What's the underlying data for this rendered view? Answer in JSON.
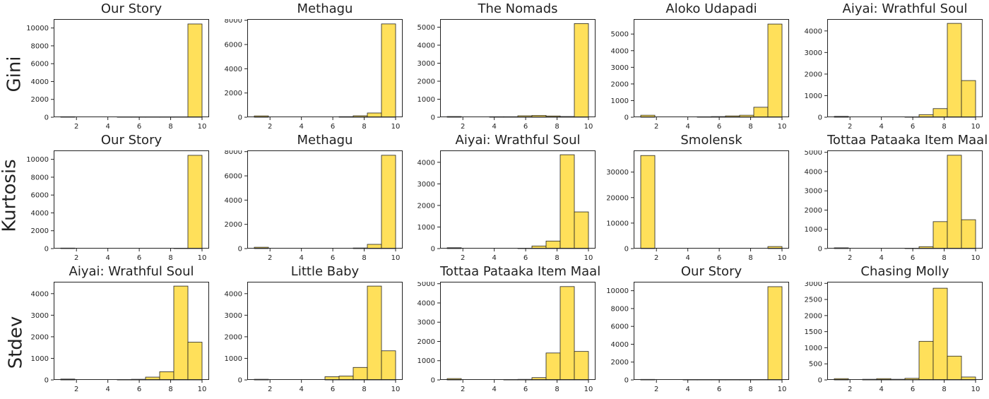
{
  "row_labels": [
    "Gini",
    "Kurtosis",
    "Stdev"
  ],
  "bar_fill": "#ffe05a",
  "bar_stroke": "#222222",
  "chart_data": [
    {
      "type": "bar",
      "row": "Gini",
      "title": "Our Story",
      "bin_edges": [
        1,
        1.9,
        2.8,
        3.7,
        4.6,
        5.5,
        6.4,
        7.3,
        8.2,
        9.1,
        10
      ],
      "values": [
        60,
        0,
        0,
        0,
        30,
        30,
        30,
        30,
        30,
        10450
      ],
      "xticks": [
        2,
        4,
        6,
        8,
        10
      ],
      "yticks": [
        0,
        2000,
        4000,
        6000,
        8000,
        10000
      ],
      "ylim": [
        0,
        11000
      ]
    },
    {
      "type": "bar",
      "row": "Gini",
      "title": "Methagu",
      "bin_edges": [
        1,
        1.9,
        2.8,
        3.7,
        4.6,
        5.5,
        6.4,
        7.3,
        8.2,
        9.1,
        10
      ],
      "values": [
        110,
        0,
        0,
        0,
        0,
        0,
        50,
        120,
        350,
        7700
      ],
      "xticks": [
        2,
        4,
        6,
        8,
        10
      ],
      "yticks": [
        0,
        2000,
        4000,
        6000,
        8000
      ],
      "ylim": [
        0,
        8100
      ]
    },
    {
      "type": "bar",
      "row": "Gini",
      "title": "The Nomads",
      "bin_edges": [
        1,
        1.9,
        2.8,
        3.7,
        4.6,
        5.5,
        6.4,
        7.3,
        8.2,
        9.1,
        10
      ],
      "values": [
        40,
        0,
        0,
        30,
        30,
        80,
        100,
        70,
        40,
        5200
      ],
      "xticks": [
        2,
        4,
        6,
        8,
        10
      ],
      "yticks": [
        0,
        1000,
        2000,
        3000,
        4000,
        5000
      ],
      "ylim": [
        0,
        5450
      ]
    },
    {
      "type": "bar",
      "row": "Gini",
      "title": "Aloko Udapadi",
      "bin_edges": [
        1,
        1.9,
        2.8,
        3.7,
        4.6,
        5.5,
        6.4,
        7.3,
        8.2,
        9.1,
        10
      ],
      "values": [
        120,
        0,
        0,
        0,
        30,
        40,
        80,
        120,
        600,
        5600
      ],
      "xticks": [
        2,
        4,
        6,
        8,
        10
      ],
      "yticks": [
        0,
        1000,
        2000,
        3000,
        4000,
        5000
      ],
      "ylim": [
        0,
        5900
      ]
    },
    {
      "type": "bar",
      "row": "Gini",
      "title": "Aiyai: Wrathful Soul",
      "bin_edges": [
        1,
        1.9,
        2.8,
        3.7,
        4.6,
        5.5,
        6.4,
        7.3,
        8.2,
        9.1,
        10
      ],
      "values": [
        40,
        0,
        0,
        0,
        0,
        20,
        120,
        400,
        4350,
        1700
      ],
      "xticks": [
        2,
        4,
        6,
        8,
        10
      ],
      "yticks": [
        0,
        1000,
        2000,
        3000,
        4000
      ],
      "ylim": [
        0,
        4550
      ]
    },
    {
      "type": "bar",
      "row": "Kurtosis",
      "title": "Our Story",
      "bin_edges": [
        1,
        1.9,
        2.8,
        3.7,
        4.6,
        5.5,
        6.4,
        7.3,
        8.2,
        9.1,
        10
      ],
      "values": [
        60,
        0,
        0,
        0,
        0,
        0,
        0,
        0,
        30,
        10450
      ],
      "xticks": [
        2,
        4,
        6,
        8,
        10
      ],
      "yticks": [
        0,
        2000,
        4000,
        6000,
        8000,
        10000
      ],
      "ylim": [
        0,
        11000
      ]
    },
    {
      "type": "bar",
      "row": "Kurtosis",
      "title": "Methagu",
      "bin_edges": [
        1,
        1.9,
        2.8,
        3.7,
        4.6,
        5.5,
        6.4,
        7.3,
        8.2,
        9.1,
        10
      ],
      "values": [
        110,
        0,
        0,
        0,
        0,
        0,
        0,
        50,
        350,
        7700
      ],
      "xticks": [
        2,
        4,
        6,
        8,
        10
      ],
      "yticks": [
        0,
        2000,
        4000,
        6000,
        8000
      ],
      "ylim": [
        0,
        8100
      ]
    },
    {
      "type": "bar",
      "row": "Kurtosis",
      "title": "Aiyai: Wrathful Soul",
      "bin_edges": [
        1,
        1.9,
        2.8,
        3.7,
        4.6,
        5.5,
        6.4,
        7.3,
        8.2,
        9.1,
        10
      ],
      "values": [
        40,
        0,
        0,
        0,
        0,
        20,
        120,
        350,
        4350,
        1700
      ],
      "xticks": [
        2,
        4,
        6,
        8,
        10
      ],
      "yticks": [
        0,
        1000,
        2000,
        3000,
        4000
      ],
      "ylim": [
        0,
        4550
      ]
    },
    {
      "type": "bar",
      "row": "Kurtosis",
      "title": "Smolensk",
      "bin_edges": [
        1,
        1.9,
        2.8,
        3.7,
        4.6,
        5.5,
        6.4,
        7.3,
        8.2,
        9.1,
        10
      ],
      "values": [
        36500,
        0,
        0,
        0,
        0,
        0,
        0,
        0,
        0,
        800
      ],
      "xticks": [
        2,
        4,
        6,
        8,
        10
      ],
      "yticks": [
        0,
        10000,
        20000,
        30000
      ],
      "ylim": [
        0,
        38500
      ]
    },
    {
      "type": "bar",
      "row": "Kurtosis",
      "title": "Tottaa Pataaka Item Maal",
      "bin_edges": [
        1,
        1.9,
        2.8,
        3.7,
        4.6,
        5.5,
        6.4,
        7.3,
        8.2,
        9.1,
        10
      ],
      "values": [
        40,
        0,
        0,
        0,
        0,
        20,
        100,
        1400,
        4850,
        1500
      ],
      "xticks": [
        2,
        4,
        6,
        8,
        10
      ],
      "yticks": [
        0,
        1000,
        2000,
        3000,
        4000,
        5000
      ],
      "ylim": [
        0,
        5100
      ]
    },
    {
      "type": "bar",
      "row": "Stdev",
      "title": "Aiyai: Wrathful Soul",
      "bin_edges": [
        1,
        1.9,
        2.8,
        3.7,
        4.6,
        5.5,
        6.4,
        7.3,
        8.2,
        9.1,
        10
      ],
      "values": [
        40,
        0,
        0,
        0,
        20,
        30,
        130,
        380,
        4350,
        1750
      ],
      "xticks": [
        2,
        4,
        6,
        8,
        10
      ],
      "yticks": [
        0,
        1000,
        2000,
        3000,
        4000
      ],
      "ylim": [
        0,
        4550
      ]
    },
    {
      "type": "bar",
      "row": "Stdev",
      "title": "Little Baby",
      "bin_edges": [
        1,
        1.9,
        2.8,
        3.7,
        4.6,
        5.5,
        6.4,
        7.3,
        8.2,
        9.1,
        10
      ],
      "values": [
        30,
        0,
        0,
        0,
        0,
        150,
        180,
        580,
        4350,
        1350
      ],
      "xticks": [
        2,
        4,
        6,
        8,
        10
      ],
      "yticks": [
        0,
        1000,
        2000,
        3000,
        4000
      ],
      "ylim": [
        0,
        4550
      ]
    },
    {
      "type": "bar",
      "row": "Stdev",
      "title": "Tottaa Pataaka Item Maal",
      "bin_edges": [
        1,
        1.9,
        2.8,
        3.7,
        4.6,
        5.5,
        6.4,
        7.3,
        8.2,
        9.1,
        10
      ],
      "values": [
        70,
        0,
        0,
        0,
        20,
        30,
        120,
        1400,
        4850,
        1480
      ],
      "xticks": [
        2,
        4,
        6,
        8,
        10
      ],
      "yticks": [
        0,
        1000,
        2000,
        3000,
        4000,
        5000
      ],
      "ylim": [
        0,
        5100
      ]
    },
    {
      "type": "bar",
      "row": "Stdev",
      "title": "Our Story",
      "bin_edges": [
        1,
        1.9,
        2.8,
        3.7,
        4.6,
        5.5,
        6.4,
        7.3,
        8.2,
        9.1,
        10
      ],
      "values": [
        60,
        0,
        0,
        30,
        30,
        30,
        30,
        30,
        30,
        10450
      ],
      "xticks": [
        2,
        4,
        6,
        8,
        10
      ],
      "yticks": [
        0,
        2000,
        4000,
        6000,
        8000,
        10000
      ],
      "ylim": [
        0,
        11000
      ]
    },
    {
      "type": "bar",
      "row": "Stdev",
      "title": "Chasing Molly",
      "bin_edges": [
        1,
        1.9,
        2.8,
        3.7,
        4.6,
        5.5,
        6.4,
        7.3,
        8.2,
        9.1,
        10
      ],
      "values": [
        40,
        0,
        20,
        40,
        20,
        50,
        1200,
        2850,
        740,
        90
      ],
      "xticks": [
        2,
        4,
        6,
        8,
        10
      ],
      "yticks": [
        0,
        500,
        1000,
        1500,
        2000,
        2500,
        3000
      ],
      "ylim": [
        0,
        3050
      ]
    }
  ]
}
